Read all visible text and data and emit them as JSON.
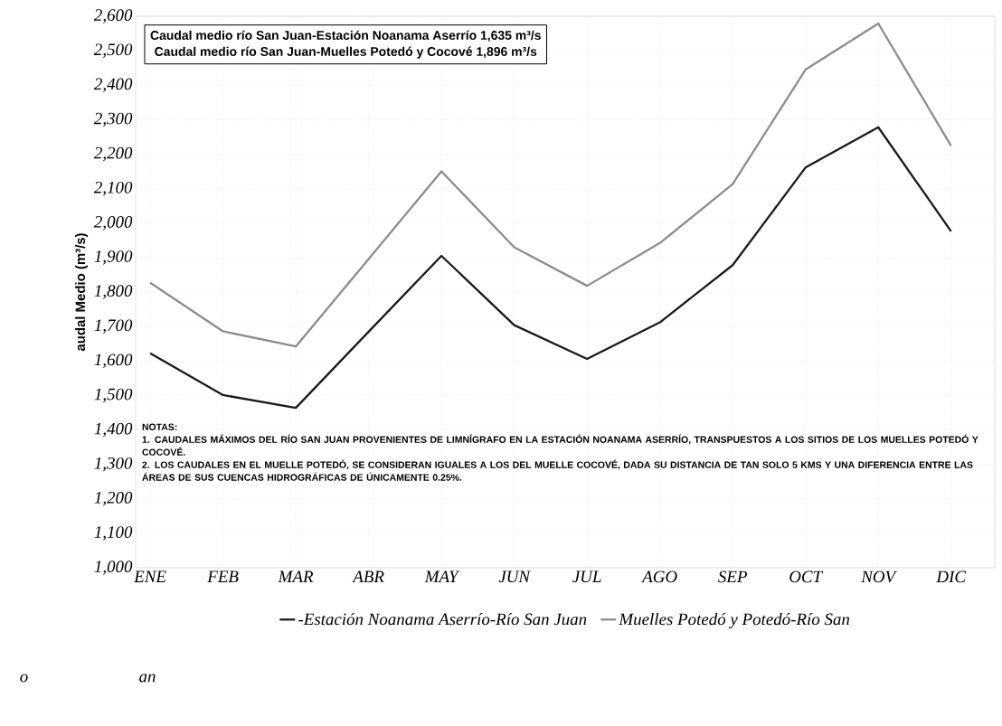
{
  "chart_data": {
    "type": "line",
    "categories": [
      "ENE",
      "FEB",
      "MAR",
      "ABR",
      "MAY",
      "JUN",
      "JUL",
      "AGO",
      "SEP",
      "OCT",
      "NOV",
      "DIC"
    ],
    "ylabel": "audal Medio (m³/s)",
    "ylim": [
      1000,
      2600
    ],
    "yticks": [
      {
        "value": 1000,
        "label": "1,000"
      },
      {
        "value": 1100,
        "label": "1,100"
      },
      {
        "value": 1200,
        "label": "1,200"
      },
      {
        "value": 1300,
        "label": "1,300"
      },
      {
        "value": 1400,
        "label": "1,400"
      },
      {
        "value": 1500,
        "label": "1,500"
      },
      {
        "value": 1600,
        "label": "1,600"
      },
      {
        "value": 1700,
        "label": "1,700"
      },
      {
        "value": 1800,
        "label": "1,800"
      },
      {
        "value": 1900,
        "label": "1,900"
      },
      {
        "value": 2000,
        "label": "2,000"
      },
      {
        "value": 2100,
        "label": "2,100"
      },
      {
        "value": 2200,
        "label": "2,200"
      },
      {
        "value": 2300,
        "label": "2,300"
      },
      {
        "value": 2400,
        "label": "2,400"
      },
      {
        "value": 2500,
        "label": "2,500"
      },
      {
        "value": 2600,
        "label": "2,600"
      }
    ],
    "series": [
      {
        "name": "-Estación Noanama Aserrío-Río San Juan",
        "color": "#1a1a1a",
        "values": [
          1622,
          1501,
          1464,
          1685,
          1905,
          1704,
          1606,
          1712,
          1878,
          2161,
          2278,
          1976
        ]
      },
      {
        "name": "Muelles Potedó y Potedó-Río San",
        "color": "#8c8c8c",
        "values": [
          1827,
          1686,
          1642,
          1896,
          2150,
          1930,
          1818,
          1942,
          2113,
          2445,
          2579,
          2224
        ]
      }
    ],
    "annotations": [
      "Caudal medio río San Juan-Estación Noanama Aserrío 1,635 m³/s",
      "Caudal medio río San Juan-Muelles Potedó y Cocové 1,896 m³/s",
      "NOTAS:",
      "1. CAUDALES MÁXIMOS DEL RÍO SAN JUAN PROVENIENTES DE LIMNÍGRAFO EN LA ESTACIÓN NOANAMA ASERRÍO, TRANSPUESTOS A LOS SITIOS DE LOS MUELLES POTEDÓ Y COCOVÉ.",
      "2. LOS CAUDALES EN EL MUELLE POTEDÓ, SE CONSIDERAN IGUALES A LOS DEL MUELLE COCOVÉ, DADA SU DISTANCIA DE TAN SOLO 5 KMS Y UNA DIFERENCIA ENTRE LAS ÁREAS DE SUS CUENCAS HIDROGRÁFICAS DE ÚNICAMENTE 0.25%.",
      "o",
      "an"
    ],
    "grid": true,
    "legend": "bottom",
    "marker": "none",
    "line_style": "solid"
  }
}
